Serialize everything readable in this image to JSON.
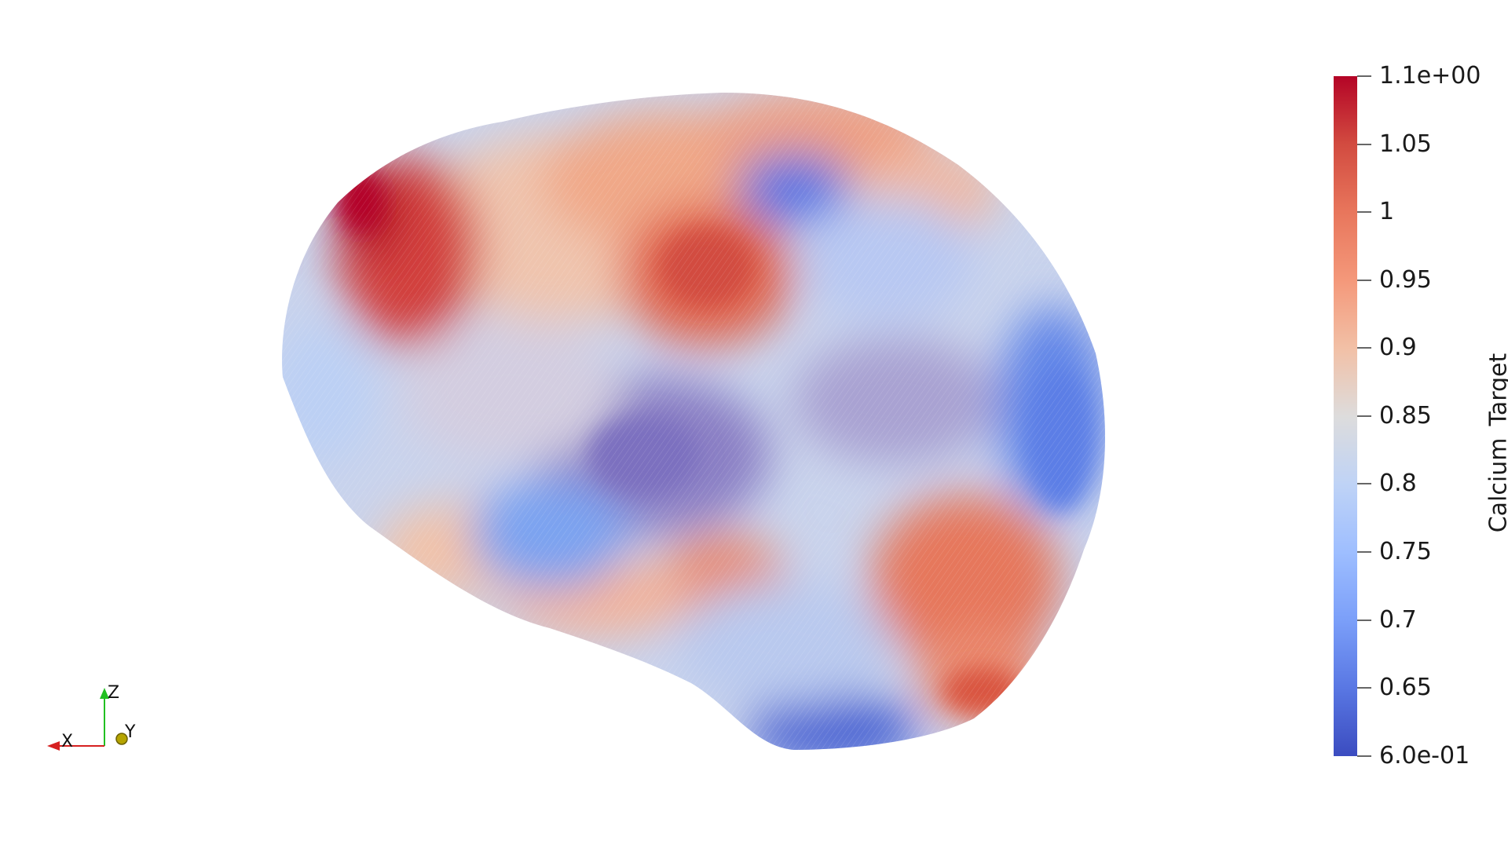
{
  "scalar_bar": {
    "title": "Calcium_Target",
    "tick_labels": [
      "1.1e+00",
      "1.05",
      "1",
      "0.95",
      "0.9",
      "0.85",
      "0.8",
      "0.75",
      "0.7",
      "0.65",
      "6.0e-01"
    ],
    "colormap": "Cool to Warm",
    "range": [
      0.6,
      1.1
    ],
    "colors": {
      "min": "#3b4cc0",
      "mid": "#dddddd",
      "max": "#b40426"
    }
  },
  "orientation_axes": {
    "x_label": "X",
    "y_label": "Y",
    "z_label": "Z",
    "colors": {
      "x": "#d62020",
      "y": "#b5a400",
      "z": "#22c022"
    }
  },
  "render": {
    "background": "#ffffff",
    "surface_icon": "brain-mesh-surface"
  }
}
